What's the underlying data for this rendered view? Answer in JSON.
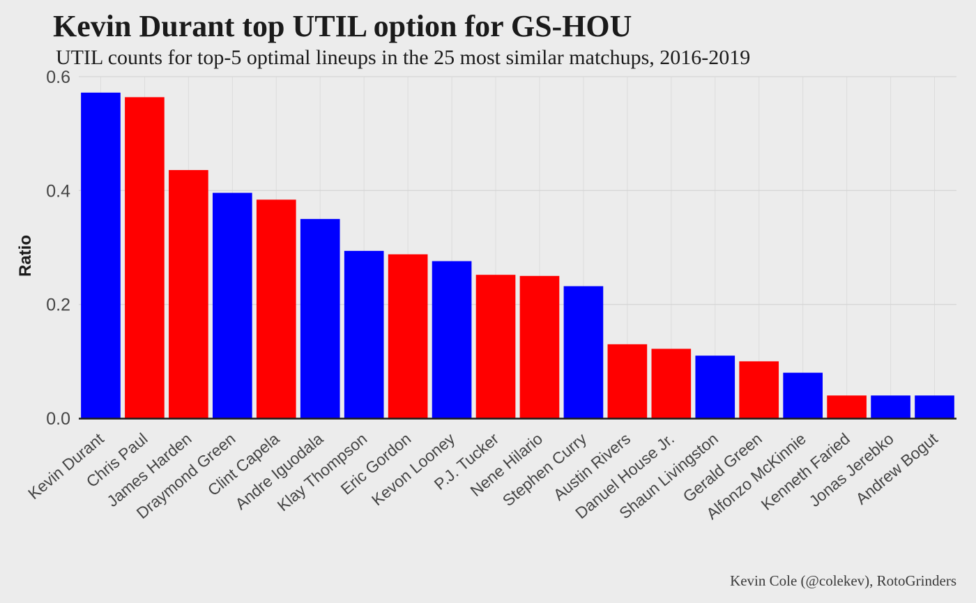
{
  "chart_data": {
    "type": "bar",
    "title": "Kevin Durant top UTIL option for GS-HOU",
    "subtitle": "UTIL counts for top-5 optimal lineups in the 25 most similar matchups, 2016-2019",
    "caption": "Kevin Cole (@colekev), RotoGrinders",
    "xlabel": "",
    "ylabel": "Ratio",
    "ylim": [
      0,
      0.6
    ],
    "yticks": [
      {
        "value": 0.0,
        "label": "0.0"
      },
      {
        "value": 0.2,
        "label": "0.2"
      },
      {
        "value": 0.4,
        "label": "0.4"
      },
      {
        "value": 0.6,
        "label": "0.6"
      }
    ],
    "grid": true,
    "team_colors": {
      "GS": "#0000ff",
      "HOU": "#ff0000"
    },
    "categories": [
      "Kevin Durant",
      "Chris Paul",
      "James Harden",
      "Draymond Green",
      "Clint Capela",
      "Andre Iguodala",
      "Klay Thompson",
      "Eric Gordon",
      "Kevon Looney",
      "P.J. Tucker",
      "Nene Hilario",
      "Stephen Curry",
      "Austin Rivers",
      "Danuel House Jr.",
      "Shaun Livingston",
      "Gerald Green",
      "Alfonzo McKinnie",
      "Kenneth Faried",
      "Jonas Jerebko",
      "Andrew Bogut"
    ],
    "values": [
      0.572,
      0.564,
      0.436,
      0.396,
      0.384,
      0.35,
      0.294,
      0.288,
      0.276,
      0.252,
      0.25,
      0.232,
      0.13,
      0.122,
      0.11,
      0.1,
      0.08,
      0.04,
      0.04,
      0.04
    ],
    "teams": [
      "GS",
      "HOU",
      "HOU",
      "GS",
      "HOU",
      "GS",
      "GS",
      "HOU",
      "GS",
      "HOU",
      "HOU",
      "GS",
      "HOU",
      "HOU",
      "GS",
      "HOU",
      "GS",
      "HOU",
      "GS",
      "GS"
    ]
  }
}
